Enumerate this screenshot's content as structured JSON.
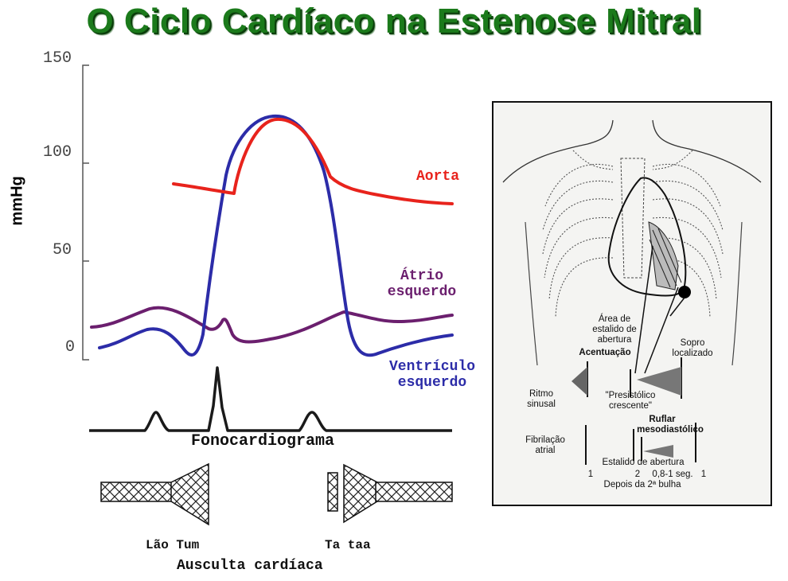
{
  "title": "O Ciclo Cardíaco na Estenose Mitral",
  "graph": {
    "y_axis_label": "mmHg",
    "y_ticks": [
      "150",
      "100",
      "50",
      "0"
    ],
    "curve_labels": {
      "aorta": "Aorta",
      "atrio_line1": "Átrio",
      "atrio_line2": "esquerdo",
      "ventriculo_line1": "Ventrículo",
      "ventriculo_line2": "esquerdo"
    },
    "fonocardiograma_label": "Fonocardiograma",
    "auscultation": {
      "sound1": "Lão Tum",
      "sound2": "Ta taa",
      "caption": "Ausculta cardíaca"
    },
    "colors": {
      "aorta": "#e8231c",
      "atrio": "#6b1f6e",
      "ventriculo": "#2c2ca8",
      "title": "#1b7a1b"
    }
  },
  "figure": {
    "area_estalido": [
      "Área de",
      "estalido de",
      "abertura"
    ],
    "sopro_localizado": [
      "Sopro",
      "localizado"
    ],
    "acentuacao": "Acentuação",
    "ritmo_sinusal": [
      "Ritmo",
      "sinusal"
    ],
    "presistolico": [
      "\"Presistólico",
      "crescente\""
    ],
    "ruflar": [
      "Ruflar",
      "mesodiastólico"
    ],
    "fibrilacao": [
      "Fibrilação",
      "atrial"
    ],
    "estalido_abertura": "Estalido de abertura",
    "sequence_labels": [
      "1",
      "2",
      "0,8-1 seg.",
      "1"
    ],
    "depois": "Depois da 2ª bulha"
  }
}
